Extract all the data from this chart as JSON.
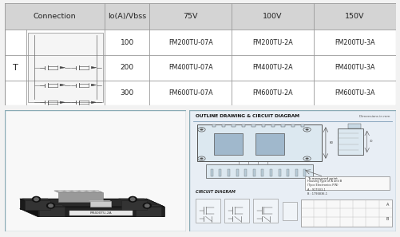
{
  "bg_color": "#f2f2f2",
  "table_bg_header": "#d4d4d4",
  "table_bg_white": "#ffffff",
  "table_border": "#999999",
  "header_row": [
    "Connection",
    "Io(A)/Vbss",
    "75V",
    "100V",
    "150V"
  ],
  "type_label": "T",
  "current_values": [
    "100",
    "200",
    "300"
  ],
  "data_75v": [
    "FM200TU-07A",
    "FM400TU-07A",
    "FM600TU-07A"
  ],
  "data_100v": [
    "FM200TU-2A",
    "FM400TU-2A",
    "FM600TU-2A"
  ],
  "data_150v": [
    "FM200TU-3A",
    "FM400TU-3A",
    "FM600TU-3A"
  ],
  "outline_title": "OUTLINE DRAWING & CIRCUIT DIAGRAM",
  "dim_note": "Dimensions in mm",
  "circuit_title": "CIRCUIT DIAGRAM",
  "housing_note1": "To measured point",
  "housing_note2": "Housing Type of A and B\n(Tyco Electronics P/N)\nA : 917503-1\nB : 1796836-1",
  "panel_border": "#8aabb5",
  "panel_bg_photo": "#f8f8f8",
  "panel_bg_draw": "#f0f4f8",
  "module_dark": "#252525",
  "module_mid": "#3a3a3a",
  "module_light": "#888888",
  "module_silver": "#b0b0b0",
  "tab_color": "#444444",
  "connector_gray": "#aaaaaa",
  "connector_light": "#cccccc",
  "drawing_line": "#555555",
  "drawing_bg": "#e8eef5"
}
